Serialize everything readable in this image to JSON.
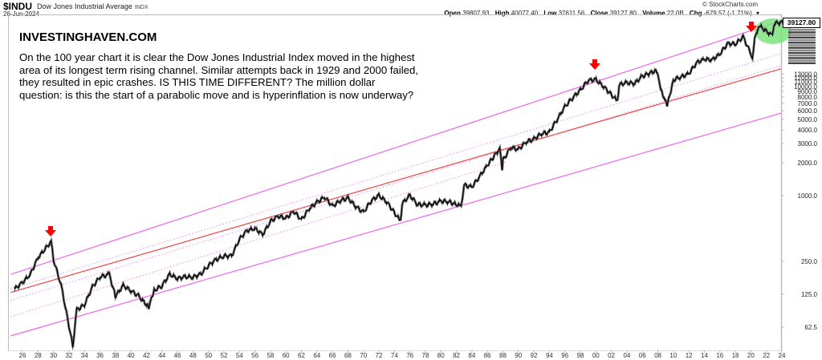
{
  "header": {
    "symbol": "$INDU",
    "name": "Dow Jones Industrial Average",
    "exchange": "INDX",
    "date": "26-Jun-2024",
    "copyright": "© StockCharts.com",
    "ohlc": {
      "open_label": "Open",
      "open": "39807.93",
      "high_label": "High",
      "high": "40077.40",
      "low_label": "Low",
      "low": "37611.56",
      "close_label": "Close",
      "close": "39127.80",
      "volume_label": "Volume",
      "volume": "22.0B",
      "chg_label": "Chg",
      "chg": "-679.57 (-1.71%)",
      "dropdown_glyph": "▾"
    }
  },
  "annotation": {
    "brand": "INVESTINGHAVEN.COM",
    "text": "On the 100 year chart it is clear the Dow Jones Industrial Index moved in the highest area of its longest term rising channel. Similar attempts back in 1929 and 2000 failed, they resulted in epic crashes. IS THIS TIME DIFFERENT? The million dollar question: is this the start of a parabolic move and is hyperinflation is now underway?"
  },
  "price_label": "39127.80",
  "colors": {
    "channel_outer": "#ee66ee",
    "channel_inner_dotted": "#ee88ee",
    "channel_mid": "#ee4444",
    "arrow": "#ff0000",
    "highlight_ellipse": "#7ee27e",
    "price": "#000000",
    "axis": "#bbbbbb"
  },
  "chart_data": {
    "type": "line",
    "title": "$INDU Dow Jones Industrial Average INDX — 100 year log chart",
    "xlabel": "",
    "ylabel": "",
    "yscale": "log",
    "ylim": [
      40,
      45000
    ],
    "xlim": [
      1924.5,
      2024.5
    ],
    "grid": false,
    "x_ticks": [
      "26",
      "28",
      "30",
      "32",
      "34",
      "36",
      "38",
      "40",
      "42",
      "44",
      "46",
      "48",
      "50",
      "52",
      "54",
      "56",
      "58",
      "60",
      "62",
      "64",
      "66",
      "68",
      "70",
      "72",
      "74",
      "76",
      "78",
      "80",
      "82",
      "84",
      "86",
      "88",
      "90",
      "92",
      "94",
      "96",
      "98",
      "00",
      "02",
      "04",
      "06",
      "08",
      "10",
      "12",
      "14",
      "16",
      "18",
      "20",
      "22",
      "24"
    ],
    "y_ticks": [
      "62.5",
      "125.0",
      "250.0",
      "1000.0",
      "2000.0",
      "3000.0",
      "4000.0",
      "5000.0",
      "6000.0",
      "7000.0",
      "8000.0",
      "9000.0",
      "10000.0",
      "11000.0",
      "12000.0",
      "13000.0",
      "39127.80"
    ],
    "series": [
      {
        "name": "$INDU",
        "x": [
          1925,
          1926,
          1927,
          1928,
          1929.7,
          1930,
          1931,
          1932.5,
          1933,
          1934,
          1935,
          1936,
          1937.2,
          1938,
          1939,
          1940,
          1941,
          1942.3,
          1943,
          1944,
          1945,
          1946,
          1947,
          1948,
          1949,
          1950,
          1951,
          1952,
          1953,
          1954,
          1955,
          1956,
          1957,
          1958,
          1959,
          1960,
          1961,
          1962,
          1963,
          1964,
          1965,
          1966,
          1967,
          1968,
          1969,
          1970,
          1971,
          1972,
          1973,
          1974.8,
          1975,
          1976,
          1977,
          1978,
          1979,
          1980,
          1981,
          1982.6,
          1983,
          1984,
          1985,
          1986,
          1987.6,
          1987.9,
          1988,
          1989,
          1990,
          1991,
          1992,
          1993,
          1994,
          1995,
          1996,
          1997,
          1998,
          1999,
          2000,
          2001,
          2002.8,
          2003,
          2004,
          2005,
          2006,
          2007.8,
          2008.5,
          2009.2,
          2010,
          2011,
          2012,
          2013,
          2014,
          2015,
          2016,
          2017,
          2018,
          2019,
          2020.2,
          2020.5,
          2021,
          2022.8,
          2023,
          2024.5
        ],
        "values": [
          140,
          160,
          190,
          270,
          380,
          260,
          150,
          42,
          90,
          100,
          145,
          180,
          190,
          120,
          150,
          135,
          120,
          95,
          135,
          150,
          190,
          175,
          180,
          180,
          190,
          230,
          260,
          280,
          280,
          400,
          480,
          500,
          440,
          580,
          650,
          620,
          720,
          600,
          760,
          870,
          970,
          800,
          900,
          950,
          800,
          700,
          900,
          1000,
          880,
          580,
          850,
          1000,
          830,
          820,
          840,
          890,
          880,
          800,
          1250,
          1200,
          1500,
          1900,
          2700,
          1740,
          2100,
          2750,
          2650,
          3100,
          3300,
          3700,
          3800,
          5000,
          6500,
          7900,
          9200,
          11400,
          11500,
          10000,
          7300,
          10400,
          10800,
          10700,
          12400,
          14000,
          9000,
          6600,
          11500,
          12200,
          13100,
          16500,
          17800,
          17500,
          19800,
          24700,
          24400,
          28500,
          18600,
          27000,
          36300,
          29000,
          37700,
          39127.8
        ]
      }
    ],
    "overlays": [
      {
        "name": "upper channel line",
        "style": "solid magenta",
        "from": [
          1924.5,
          190
        ],
        "to": [
          2024.5,
          40000
        ]
      },
      {
        "name": "upper dotted line",
        "style": "dotted magenta",
        "from": [
          1924.5,
          140
        ],
        "to": [
          2024.5,
          20000
        ]
      },
      {
        "name": "upper-mid dotted line",
        "style": "dotted magenta",
        "from": [
          1924.5,
          110
        ],
        "to": [
          2024.5,
          15500
        ]
      },
      {
        "name": "mid channel line",
        "style": "solid red",
        "from": [
          1924.5,
          130
        ],
        "to": [
          2024.5,
          14500
        ]
      },
      {
        "name": "lower dotted line",
        "style": "dotted magenta",
        "from": [
          1924.5,
          78
        ],
        "to": [
          1988.5,
          2050
        ]
      },
      {
        "name": "lower channel line",
        "style": "solid magenta",
        "from": [
          1924.5,
          52
        ],
        "to": [
          2024.5,
          5700
        ]
      }
    ],
    "annotations": [
      {
        "type": "red down arrow",
        "at": 1929.5,
        "label": "1929 top"
      },
      {
        "type": "red down arrow",
        "at": 2000,
        "label": "2000 top"
      },
      {
        "type": "red down arrow",
        "at": 2020,
        "label": "2020 top"
      },
      {
        "type": "green ellipse highlight",
        "around": [
          2021,
          2024.5
        ],
        "label": "current highs"
      }
    ]
  }
}
